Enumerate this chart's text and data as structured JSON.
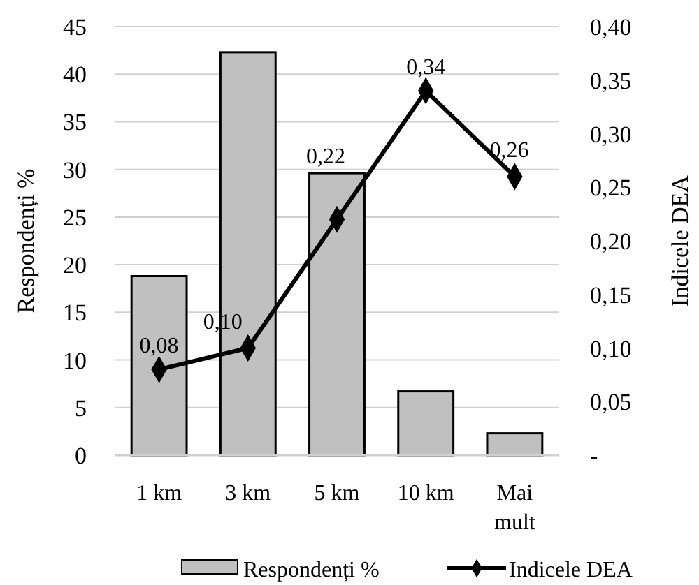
{
  "chart_data": {
    "type": "bar",
    "ylabel": "Respondenți %",
    "y2label": "Indicele DEA",
    "categories": [
      "1 km",
      "3 km",
      "5 km",
      "10 km",
      "Mai mult"
    ],
    "series": [
      {
        "name": "Respondenți %",
        "color": "#c0c0c0",
        "values": [
          18.8,
          42.3,
          29.6,
          6.7,
          2.3
        ]
      },
      {
        "name": "Indicele DEA",
        "type": "line",
        "axis": "y2",
        "color": "#000000",
        "marker": "diamond",
        "values": [
          0.08,
          0.1,
          0.22,
          0.34,
          0.26
        ],
        "value_labels": [
          "0,08",
          "0,10",
          "0,22",
          "0,34",
          "0,26"
        ]
      }
    ],
    "ylim": [
      0,
      45
    ],
    "yticks": [
      0,
      5,
      10,
      15,
      20,
      25,
      30,
      35,
      40,
      45
    ],
    "y2lim": [
      0,
      0.4
    ],
    "y2ticks": [
      {
        "value": 0,
        "label": "-"
      },
      {
        "value": 0.05,
        "label": "0,05"
      },
      {
        "value": 0.1,
        "label": "0,10"
      },
      {
        "value": 0.15,
        "label": "0,15"
      },
      {
        "value": 0.2,
        "label": "0,20"
      },
      {
        "value": 0.25,
        "label": "0,25"
      },
      {
        "value": 0.3,
        "label": "0,30"
      },
      {
        "value": 0.35,
        "label": "0,35"
      },
      {
        "value": 0.4,
        "label": "0,40"
      }
    ],
    "grid": "y",
    "legend": "bottom"
  }
}
